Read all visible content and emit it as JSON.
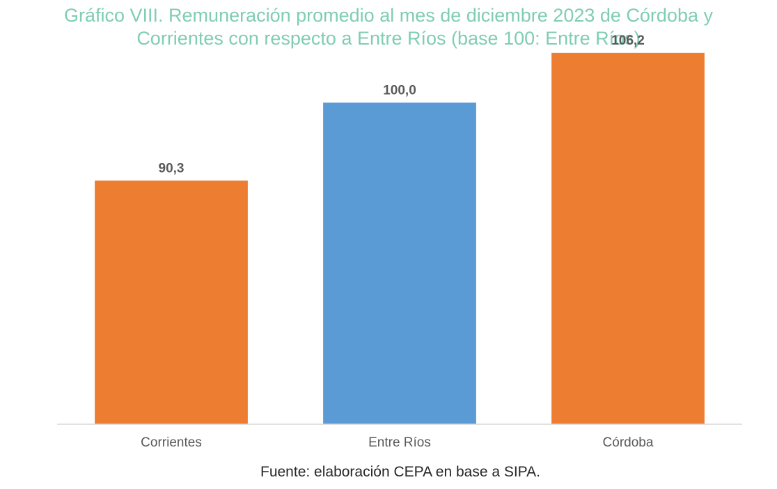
{
  "chart_data": {
    "type": "bar",
    "title": "Gráfico VIII. Remuneración promedio al mes de diciembre 2023 de Córdoba y Corrientes con respecto a Entre Ríos (base 100: Entre Ríos)",
    "title_lines": [
      "Gráfico VIII. Remuneración promedio al mes de diciembre 2023 de Córdoba y",
      "Corrientes con respecto a Entre Ríos (base 100: Entre Ríos)"
    ],
    "categories": [
      "Corrientes",
      "Entre Ríos",
      "Córdoba"
    ],
    "values": [
      90.3,
      100.0,
      106.2
    ],
    "value_labels": [
      "90,3",
      "100,0",
      "106,2"
    ],
    "bar_colors": [
      "#ed7d31",
      "#5b9bd5",
      "#ed7d31"
    ],
    "xlabel": "",
    "ylabel": "",
    "ylim": [
      60,
      110
    ],
    "grid": false,
    "legend": "none"
  },
  "source_note": "Fuente: elaboración CEPA en base a SIPA.",
  "colors": {
    "title": "#7fcdb3",
    "axis": "#d9d9d9",
    "label_text": "#595959"
  }
}
